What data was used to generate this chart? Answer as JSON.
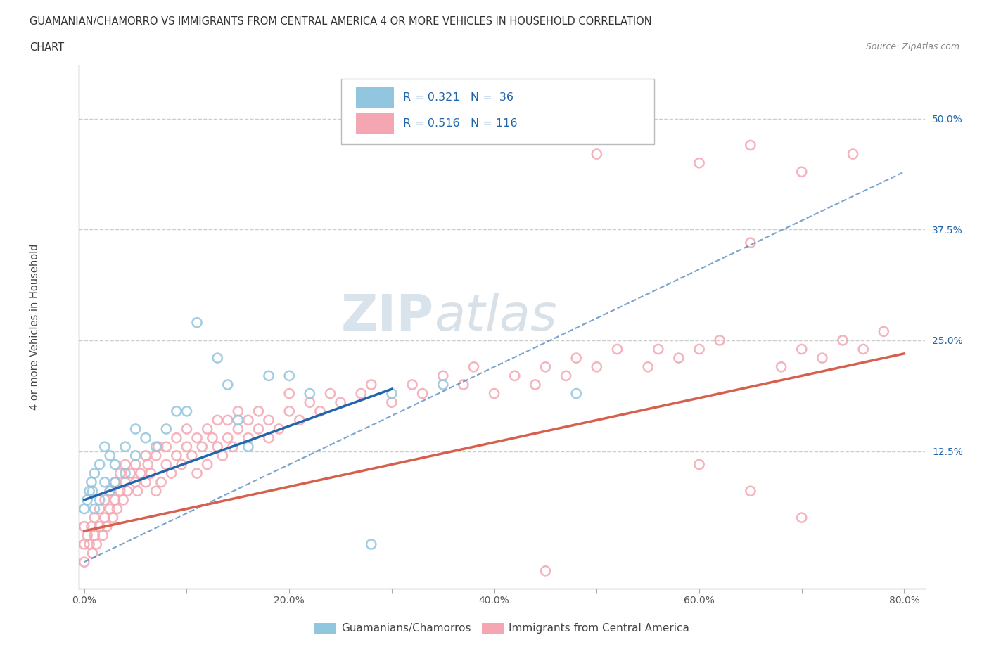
{
  "title_line1": "GUAMANIAN/CHAMORRO VS IMMIGRANTS FROM CENTRAL AMERICA 4 OR MORE VEHICLES IN HOUSEHOLD CORRELATION",
  "title_line2": "CHART",
  "source_text": "Source: ZipAtlas.com",
  "ylabel": "4 or more Vehicles in Household",
  "xlim": [
    -0.005,
    0.82
  ],
  "ylim": [
    -0.03,
    0.56
  ],
  "xticks": [
    0.0,
    0.1,
    0.2,
    0.3,
    0.4,
    0.5,
    0.6,
    0.7,
    0.8
  ],
  "xticklabels": [
    "0.0%",
    "",
    "20.0%",
    "",
    "40.0%",
    "",
    "60.0%",
    "",
    "80.0%"
  ],
  "yticks": [
    0.0,
    0.125,
    0.25,
    0.375,
    0.5
  ],
  "yticklabels": [
    "",
    "12.5%",
    "25.0%",
    "37.5%",
    "50.0%"
  ],
  "legend_labels": [
    "Guamanians/Chamorros",
    "Immigrants from Central America"
  ],
  "blue_color": "#92C5DE",
  "pink_color": "#F4A6B2",
  "blue_line_color": "#2166AC",
  "pink_line_color": "#D6604D",
  "blue_R": 0.321,
  "blue_N": 36,
  "pink_R": 0.516,
  "pink_N": 116,
  "watermark_zip": "ZIP",
  "watermark_atlas": "atlas",
  "grid_color": "#CCCCCC",
  "blue_scatter_x": [
    0.0,
    0.003,
    0.005,
    0.007,
    0.008,
    0.01,
    0.01,
    0.015,
    0.015,
    0.02,
    0.02,
    0.025,
    0.025,
    0.03,
    0.03,
    0.04,
    0.04,
    0.05,
    0.05,
    0.06,
    0.07,
    0.08,
    0.09,
    0.1,
    0.11,
    0.13,
    0.14,
    0.15,
    0.16,
    0.18,
    0.2,
    0.22,
    0.28,
    0.3,
    0.35,
    0.48
  ],
  "blue_scatter_y": [
    0.06,
    0.07,
    0.08,
    0.09,
    0.08,
    0.1,
    0.06,
    0.07,
    0.11,
    0.09,
    0.13,
    0.08,
    0.12,
    0.09,
    0.11,
    0.1,
    0.13,
    0.12,
    0.15,
    0.14,
    0.13,
    0.15,
    0.17,
    0.17,
    0.27,
    0.23,
    0.2,
    0.16,
    0.13,
    0.21,
    0.21,
    0.19,
    0.02,
    0.19,
    0.2,
    0.19
  ],
  "pink_scatter_x": [
    0.0,
    0.0,
    0.0,
    0.003,
    0.005,
    0.007,
    0.008,
    0.01,
    0.01,
    0.012,
    0.015,
    0.015,
    0.018,
    0.02,
    0.02,
    0.022,
    0.025,
    0.025,
    0.028,
    0.03,
    0.03,
    0.032,
    0.035,
    0.035,
    0.038,
    0.04,
    0.04,
    0.042,
    0.045,
    0.05,
    0.05,
    0.052,
    0.055,
    0.06,
    0.06,
    0.062,
    0.065,
    0.07,
    0.07,
    0.072,
    0.075,
    0.08,
    0.08,
    0.085,
    0.09,
    0.09,
    0.095,
    0.1,
    0.1,
    0.105,
    0.11,
    0.11,
    0.115,
    0.12,
    0.12,
    0.125,
    0.13,
    0.13,
    0.135,
    0.14,
    0.14,
    0.145,
    0.15,
    0.15,
    0.16,
    0.16,
    0.17,
    0.17,
    0.18,
    0.18,
    0.19,
    0.2,
    0.2,
    0.21,
    0.22,
    0.23,
    0.24,
    0.25,
    0.27,
    0.28,
    0.3,
    0.32,
    0.33,
    0.35,
    0.37,
    0.38,
    0.4,
    0.42,
    0.44,
    0.45,
    0.47,
    0.48,
    0.5,
    0.52,
    0.55,
    0.56,
    0.58,
    0.6,
    0.62,
    0.65,
    0.68,
    0.7,
    0.72,
    0.74,
    0.76,
    0.78,
    0.5,
    0.55,
    0.6,
    0.65,
    0.7,
    0.75,
    0.6,
    0.65,
    0.7,
    0.45
  ],
  "pink_scatter_y": [
    0.02,
    0.04,
    0.0,
    0.03,
    0.02,
    0.04,
    0.01,
    0.03,
    0.05,
    0.02,
    0.04,
    0.06,
    0.03,
    0.05,
    0.07,
    0.04,
    0.06,
    0.08,
    0.05,
    0.07,
    0.09,
    0.06,
    0.08,
    0.1,
    0.07,
    0.09,
    0.11,
    0.08,
    0.1,
    0.09,
    0.11,
    0.08,
    0.1,
    0.12,
    0.09,
    0.11,
    0.1,
    0.12,
    0.08,
    0.13,
    0.09,
    0.11,
    0.13,
    0.1,
    0.12,
    0.14,
    0.11,
    0.13,
    0.15,
    0.12,
    0.14,
    0.1,
    0.13,
    0.15,
    0.11,
    0.14,
    0.13,
    0.16,
    0.12,
    0.14,
    0.16,
    0.13,
    0.15,
    0.17,
    0.14,
    0.16,
    0.15,
    0.17,
    0.14,
    0.16,
    0.15,
    0.17,
    0.19,
    0.16,
    0.18,
    0.17,
    0.19,
    0.18,
    0.19,
    0.2,
    0.18,
    0.2,
    0.19,
    0.21,
    0.2,
    0.22,
    0.19,
    0.21,
    0.2,
    0.22,
    0.21,
    0.23,
    0.22,
    0.24,
    0.22,
    0.24,
    0.23,
    0.24,
    0.25,
    0.36,
    0.22,
    0.24,
    0.23,
    0.25,
    0.24,
    0.26,
    0.46,
    0.48,
    0.45,
    0.47,
    0.44,
    0.46,
    0.11,
    0.08,
    0.05,
    -0.01
  ],
  "blue_trend_x": [
    0.0,
    0.3
  ],
  "blue_trend_y": [
    0.07,
    0.195
  ],
  "pink_trend_x": [
    0.0,
    0.8
  ],
  "pink_trend_y": [
    0.035,
    0.235
  ],
  "dash_trend_x": [
    0.0,
    0.8
  ],
  "dash_trend_y": [
    0.0,
    0.44
  ]
}
